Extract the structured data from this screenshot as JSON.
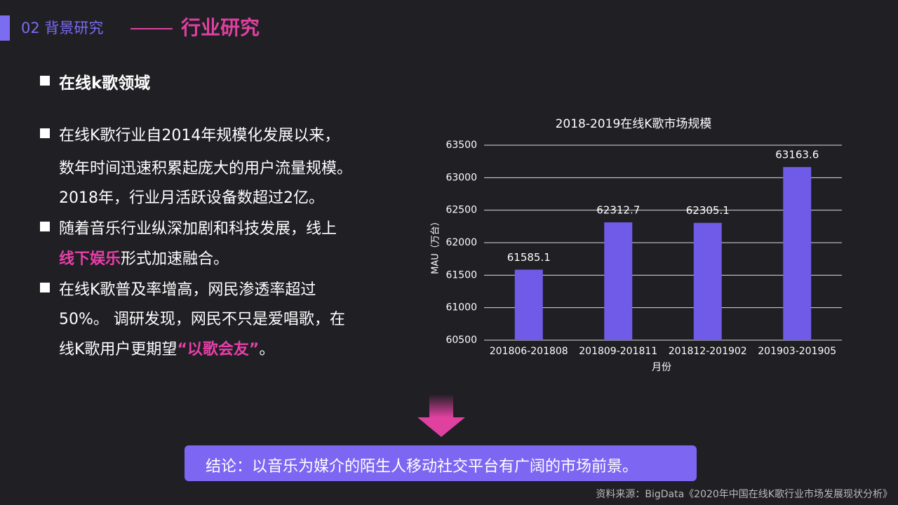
{
  "header": {
    "section": "02 背景研究",
    "title": "行业研究"
  },
  "heading": "在线k歌领域",
  "bullets": [
    {
      "lines": [
        [
          "在线K歌行业自2014年规模化发展以来，"
        ],
        [
          "数年时间迅速积累起庞大的用户流量规模。"
        ],
        [
          "2018年，行业月活跃设备数超过2亿。"
        ]
      ]
    },
    {
      "lines": [
        [
          "随着音乐行业纵深加剧和科技发展，线上"
        ],
        [
          {
            "text": "线下娱乐",
            "emphasis": true
          },
          "形式加速融合。"
        ]
      ]
    },
    {
      "lines": [
        [
          "在线K歌普及率增高，网民渗透率超过"
        ],
        [
          "50%。 调研发现，网民不只是爱唱歌，在"
        ],
        [
          "线K歌用户更期望",
          {
            "text": "“以歌会友”",
            "emphasis": true
          },
          "。"
        ]
      ]
    }
  ],
  "chart_data": {
    "type": "bar",
    "title": "2018-2019在线K歌市场规模",
    "categories": [
      "201806-201808",
      "201809-201811",
      "201812-201902",
      "201903-201905"
    ],
    "values": [
      61585.1,
      62312.7,
      62305.1,
      63163.6
    ],
    "color": "#6f5be8",
    "ylim": [
      60500,
      63500
    ],
    "yticks": [
      60500,
      61000,
      61500,
      62000,
      62500,
      63000,
      63500
    ],
    "grid": true,
    "x_label": "月份",
    "y_label": "MAU（万台）"
  },
  "conclusion": "结论：以音乐为媒介的陌生人移动社交平台有广阔的市场前景。",
  "source": "资料来源：BigData《2020年中国在线K歌行业市场发展现状分析》"
}
